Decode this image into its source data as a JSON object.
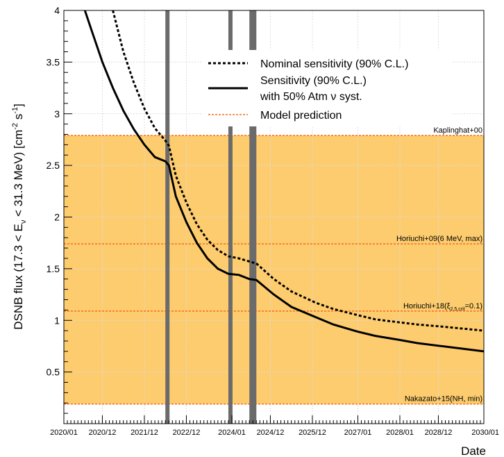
{
  "chart_data": {
    "type": "line",
    "title": "",
    "xlabel": "Date",
    "ylabel_parts": [
      "DSNB flux (17.3 < E",
      "ν",
      " < 31.3 MeV) [cm",
      "-2",
      " s",
      "-1",
      "]"
    ],
    "ylim": [
      0,
      4
    ],
    "yticks": [
      0.5,
      1,
      1.5,
      2,
      2.5,
      3,
      3.5,
      4
    ],
    "ytick_labels": [
      "0.5",
      "1",
      "1.5",
      "2",
      "2.5",
      "3",
      "3.5",
      "4"
    ],
    "xlim": [
      "2020/01",
      "2030/01"
    ],
    "xticks": [
      "2020/01",
      "2020/12",
      "2021/12",
      "2022/12",
      "2024/01",
      "2024/12",
      "2025/12",
      "2027/01",
      "2028/01",
      "2028/12",
      "2030/01"
    ],
    "grid": true,
    "legend_placement": "top-right",
    "legend": [
      {
        "label": "Nominal sensitivity (90% C.L.)",
        "style": "dotted-black"
      },
      {
        "label": "Sensitivity (90% C.L.)",
        "label2": "with 50% Atm ν syst.",
        "style": "solid-black"
      },
      {
        "label": "Model prediction",
        "style": "dashed-orange"
      }
    ],
    "band": {
      "ymin": 0.19,
      "ymax": 2.79,
      "color": "#fdcc6e"
    },
    "models": [
      {
        "label": "Kaplinghat+00",
        "y": 2.79
      },
      {
        "label": "Horiuchi+09(6 MeV, max)",
        "y": 1.74
      },
      {
        "label_main": "Horiuchi+18(ξ",
        "label_sub": "2.5,crit",
        "label_tail": "=0.1)",
        "y": 1.09
      },
      {
        "label": "Nakazato+15(NH, min)",
        "y": 0.19
      }
    ],
    "vertical_bands": [
      {
        "start": "2022/06",
        "end": "2022/07"
      },
      {
        "start": "2023/12",
        "end": "2024/01"
      },
      {
        "start": "2024/06",
        "end": "2024/08"
      }
    ],
    "series": [
      {
        "name": "Nominal sensitivity (90% C.L.)",
        "style": "dotted",
        "points": [
          [
            "2021/03",
            4.0
          ],
          [
            "2021/06",
            3.6
          ],
          [
            "2021/09",
            3.3
          ],
          [
            "2021/12",
            3.05
          ],
          [
            "2022/03",
            2.86
          ],
          [
            "2022/06",
            2.74
          ],
          [
            "2022/07",
            2.69
          ],
          [
            "2022/09",
            2.4
          ],
          [
            "2022/12",
            2.14
          ],
          [
            "2023/03",
            1.93
          ],
          [
            "2023/06",
            1.78
          ],
          [
            "2023/09",
            1.68
          ],
          [
            "2023/12",
            1.62
          ],
          [
            "2024/03",
            1.6
          ],
          [
            "2024/06",
            1.57
          ],
          [
            "2024/08",
            1.55
          ],
          [
            "2025/01",
            1.4
          ],
          [
            "2025/06",
            1.28
          ],
          [
            "2026/01",
            1.17
          ],
          [
            "2026/06",
            1.11
          ],
          [
            "2027/01",
            1.05
          ],
          [
            "2027/06",
            1.01
          ],
          [
            "2028/01",
            0.98
          ],
          [
            "2028/06",
            0.96
          ],
          [
            "2029/01",
            0.94
          ],
          [
            "2030/01",
            0.9
          ]
        ]
      },
      {
        "name": "Sensitivity (90% C.L.)",
        "style": "solid",
        "points": [
          [
            "2020/07",
            4.0
          ],
          [
            "2020/09",
            3.8
          ],
          [
            "2020/12",
            3.5
          ],
          [
            "2021/03",
            3.25
          ],
          [
            "2021/06",
            3.03
          ],
          [
            "2021/09",
            2.85
          ],
          [
            "2021/12",
            2.7
          ],
          [
            "2022/03",
            2.58
          ],
          [
            "2022/06",
            2.54
          ],
          [
            "2022/07",
            2.5
          ],
          [
            "2022/09",
            2.2
          ],
          [
            "2022/12",
            1.95
          ],
          [
            "2023/03",
            1.75
          ],
          [
            "2023/06",
            1.6
          ],
          [
            "2023/09",
            1.5
          ],
          [
            "2023/12",
            1.45
          ],
          [
            "2024/03",
            1.44
          ],
          [
            "2024/06",
            1.4
          ],
          [
            "2024/08",
            1.39
          ],
          [
            "2025/01",
            1.25
          ],
          [
            "2025/06",
            1.13
          ],
          [
            "2026/01",
            1.03
          ],
          [
            "2026/06",
            0.96
          ],
          [
            "2027/01",
            0.89
          ],
          [
            "2027/06",
            0.85
          ],
          [
            "2028/01",
            0.81
          ],
          [
            "2028/06",
            0.78
          ],
          [
            "2029/01",
            0.75
          ],
          [
            "2030/01",
            0.7
          ]
        ]
      }
    ]
  }
}
